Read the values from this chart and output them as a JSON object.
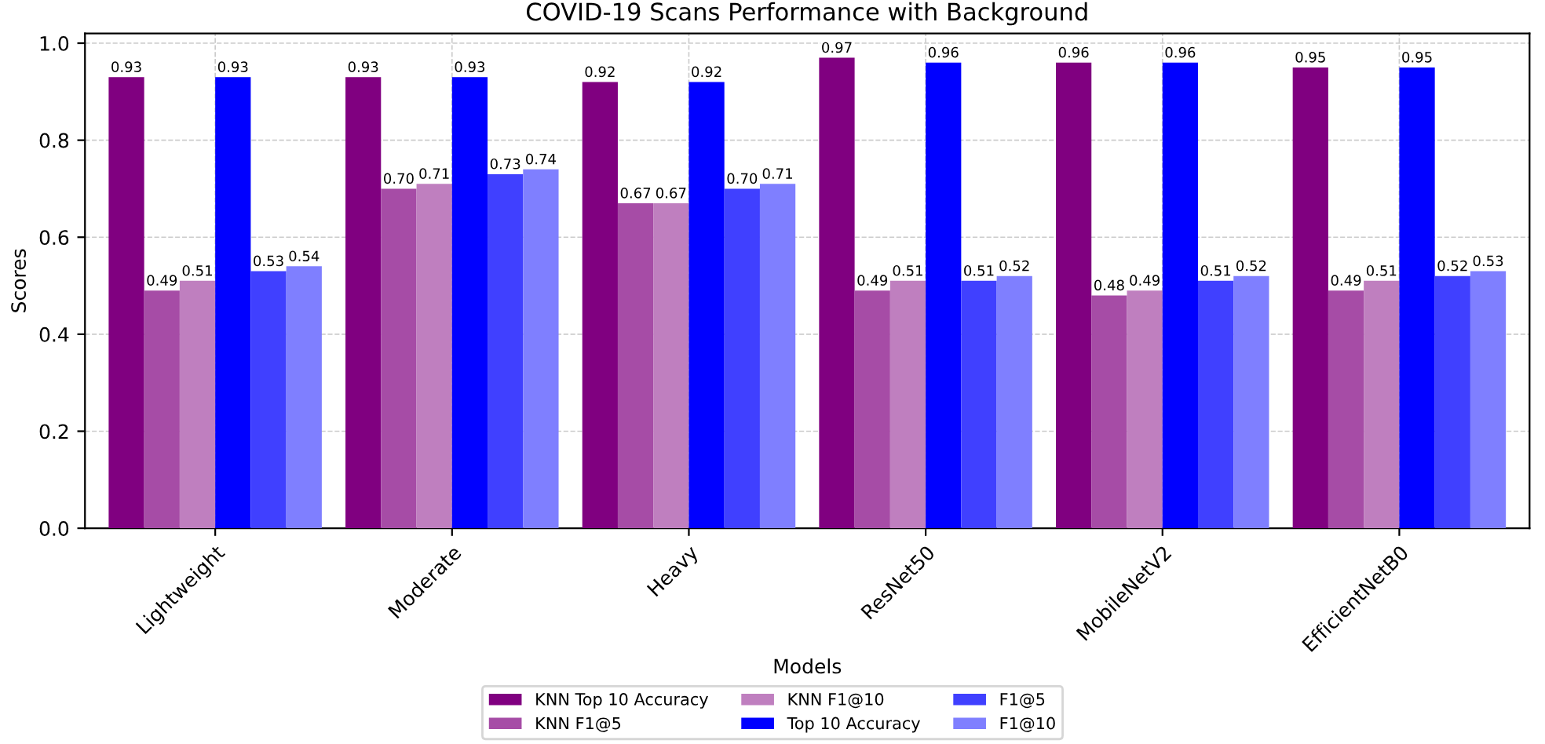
{
  "chart_data": {
    "type": "bar",
    "title": "COVID-19 Scans Performance with Background",
    "xlabel": "Models",
    "ylabel": "Scores",
    "categories": [
      "Lightweight",
      "Moderate",
      "Heavy",
      "ResNet50",
      "MobileNetV2",
      "EfficientNetB0"
    ],
    "series": [
      {
        "name": "KNN Top 10 Accuracy",
        "color": "#800080",
        "values": [
          0.93,
          0.93,
          0.92,
          0.97,
          0.96,
          0.95
        ],
        "value_labels": [
          "0.93",
          "0.93",
          "0.92",
          "0.97",
          "0.96",
          "0.95"
        ]
      },
      {
        "name": "KNN F1@5",
        "color": "#a64ca6",
        "values": [
          0.49,
          0.7,
          0.67,
          0.49,
          0.48,
          0.49
        ],
        "value_labels": [
          "0.49",
          "0.70",
          "0.67",
          "0.49",
          "0.48",
          "0.49"
        ]
      },
      {
        "name": "KNN F1@10",
        "color": "#bf7fbf",
        "values": [
          0.51,
          0.71,
          0.67,
          0.51,
          0.49,
          0.51
        ],
        "value_labels": [
          "0.51",
          "0.71",
          "0.67",
          "0.51",
          "0.49",
          "0.51"
        ]
      },
      {
        "name": "Top 10 Accuracy",
        "color": "#0000ff",
        "values": [
          0.93,
          0.93,
          0.92,
          0.96,
          0.96,
          0.95
        ],
        "value_labels": [
          "0.93",
          "0.93",
          "0.92",
          "0.96",
          "0.96",
          "0.95"
        ]
      },
      {
        "name": "F1@5",
        "color": "#4040ff",
        "values": [
          0.53,
          0.73,
          0.7,
          0.51,
          0.51,
          0.52
        ],
        "value_labels": [
          "0.53",
          "0.73",
          "0.70",
          "0.51",
          "0.51",
          "0.52"
        ]
      },
      {
        "name": "F1@10",
        "color": "#7f7fff",
        "values": [
          0.54,
          0.74,
          0.71,
          0.52,
          0.52,
          0.53
        ],
        "value_labels": [
          "0.54",
          "0.74",
          "0.71",
          "0.52",
          "0.52",
          "0.53"
        ]
      }
    ],
    "ylim": [
      0,
      1.02
    ],
    "yticks": [
      {
        "value": 0,
        "label": "0.0"
      },
      {
        "value": 0.2,
        "label": "0.2"
      },
      {
        "value": 0.4,
        "label": "0.4"
      },
      {
        "value": 0.6,
        "label": "0.6"
      },
      {
        "value": 0.8,
        "label": "0.8"
      },
      {
        "value": 1.0,
        "label": "1.0"
      }
    ],
    "grid": true,
    "legend": "bottom"
  }
}
